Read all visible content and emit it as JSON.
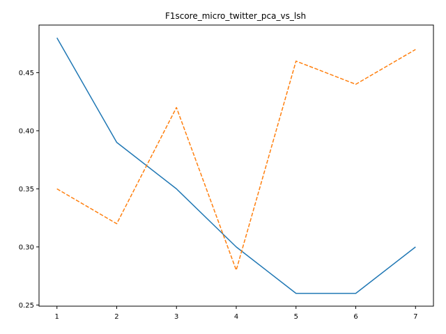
{
  "chart_data": {
    "type": "line",
    "title": "F1score_micro_twitter_pca_vs_lsh",
    "xlabel": "",
    "ylabel": "",
    "x": [
      1,
      2,
      3,
      4,
      5,
      6,
      7
    ],
    "xlim": [
      0.7,
      7.3
    ],
    "ylim": [
      0.249,
      0.491
    ],
    "xticks": [
      1,
      2,
      3,
      4,
      5,
      6,
      7
    ],
    "xtick_labels": [
      "1",
      "2",
      "3",
      "4",
      "5",
      "6",
      "7"
    ],
    "yticks": [
      0.25,
      0.3,
      0.35,
      0.4,
      0.45
    ],
    "ytick_labels": [
      "0.25",
      "0.30",
      "0.35",
      "0.40",
      "0.45"
    ],
    "grid": false,
    "legend": "none",
    "series": [
      {
        "values": [
          0.48,
          0.39,
          0.35,
          0.3,
          0.26,
          0.26,
          0.3
        ],
        "color": "#1f77b4",
        "linestyle": "solid"
      },
      {
        "values": [
          0.35,
          0.32,
          0.42,
          0.28,
          0.46,
          0.44,
          0.47
        ],
        "color": "#ff7f0e",
        "linestyle": "dashed"
      }
    ]
  }
}
